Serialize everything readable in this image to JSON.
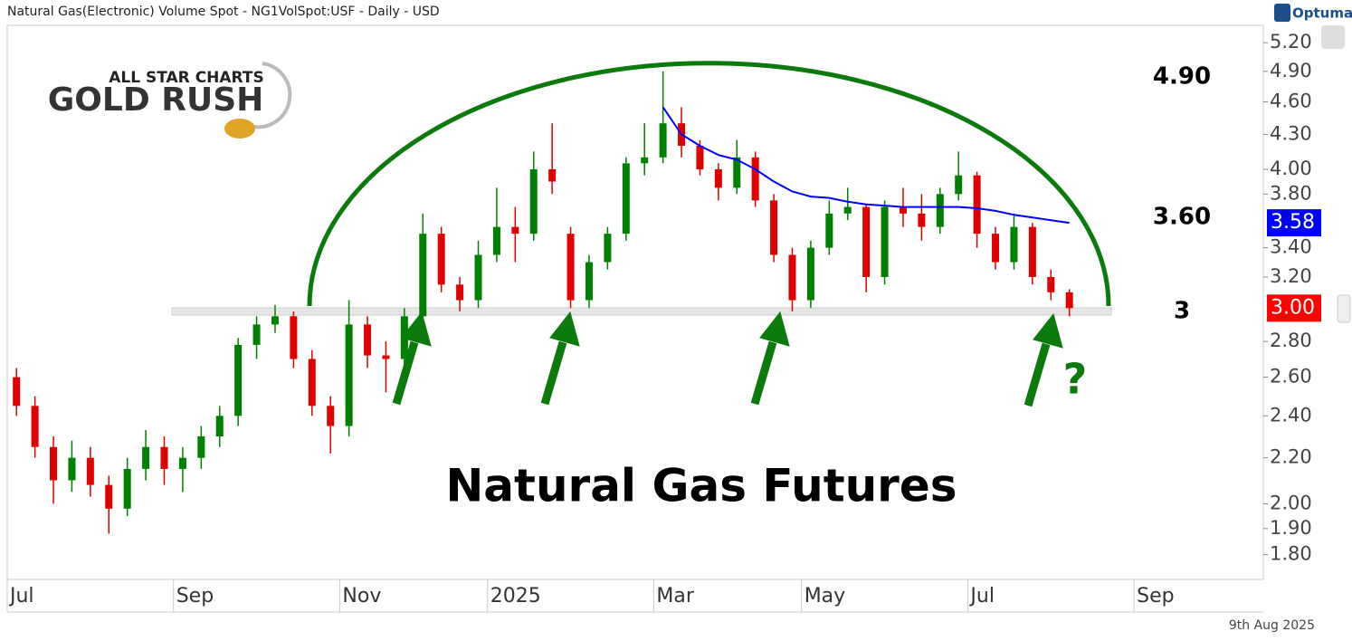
{
  "brand": "Optuma",
  "logo": [
    "ALL STAR CHARTS",
    "GOLD RUSH"
  ],
  "chart_data": {
    "type": "candlestick",
    "title": "Natural Gas(Electronic) Volume Spot - NG1VolSpot:USF - Daily - USD",
    "date_label": "9th Aug 2025",
    "categories": [
      "Jul",
      null,
      null,
      null,
      null,
      null,
      null,
      null,
      null,
      "Sep",
      null,
      null,
      null,
      null,
      null,
      null,
      null,
      null,
      "Nov",
      null,
      null,
      null,
      null,
      null,
      null,
      null,
      "2025",
      null,
      null,
      null,
      null,
      null,
      null,
      null,
      null,
      "Mar",
      null,
      null,
      null,
      null,
      null,
      null,
      null,
      "May",
      null,
      null,
      null,
      null,
      null,
      null,
      null,
      null,
      "Jul",
      null,
      null,
      null,
      null,
      null,
      null,
      null,
      null,
      "Sep",
      null,
      null,
      null,
      null,
      null,
      null
    ],
    "candles": {
      "up_color": "#008000",
      "down_color": "#e00000",
      "open": [
        2.6,
        2.45,
        2.25,
        2.1,
        2.2,
        2.08,
        1.98,
        2.15,
        2.25,
        2.15,
        2.2,
        2.3,
        2.4,
        2.78,
        2.9,
        2.95,
        2.7,
        2.45,
        2.35,
        2.9,
        2.72,
        2.7,
        2.95,
        3.5,
        3.15,
        3.05,
        3.35,
        3.55,
        3.5,
        4.0,
        3.5,
        3.05,
        3.3,
        3.5,
        4.05,
        4.1,
        4.4,
        4.2,
        4.0,
        3.85,
        4.1,
        3.75,
        3.35,
        3.05,
        3.4,
        3.65,
        3.7,
        3.2,
        3.7,
        3.65,
        3.55,
        3.8,
        3.95,
        3.5,
        3.3,
        3.55,
        3.2,
        3.1,
        null,
        null,
        null,
        null,
        null,
        null,
        null,
        null,
        null,
        null
      ],
      "high": [
        2.65,
        2.5,
        2.3,
        2.28,
        2.25,
        2.12,
        2.2,
        2.33,
        2.3,
        2.25,
        2.35,
        2.45,
        2.82,
        2.95,
        3.02,
        2.98,
        2.75,
        2.5,
        3.05,
        2.95,
        2.8,
        3.0,
        3.65,
        3.55,
        3.2,
        3.45,
        3.85,
        3.7,
        4.15,
        4.4,
        3.55,
        3.35,
        3.55,
        4.1,
        4.4,
        4.9,
        4.55,
        4.25,
        4.05,
        4.25,
        4.15,
        3.8,
        3.4,
        3.45,
        3.75,
        3.85,
        3.72,
        3.75,
        3.85,
        3.8,
        3.85,
        4.15,
        3.98,
        3.55,
        3.65,
        3.58,
        3.25,
        3.12,
        null,
        null,
        null,
        null,
        null,
        null,
        null,
        null,
        null,
        null
      ],
      "low": [
        2.4,
        2.2,
        2.0,
        2.05,
        2.03,
        1.88,
        1.95,
        2.1,
        2.08,
        2.05,
        2.15,
        2.25,
        2.35,
        2.7,
        2.85,
        2.65,
        2.4,
        2.22,
        2.3,
        2.65,
        2.52,
        2.6,
        2.9,
        3.1,
        2.98,
        3.0,
        3.3,
        3.3,
        3.45,
        3.8,
        3.0,
        3.0,
        3.25,
        3.45,
        3.95,
        4.05,
        4.1,
        3.95,
        3.75,
        3.8,
        3.7,
        3.3,
        2.98,
        3.0,
        3.35,
        3.6,
        3.1,
        3.15,
        3.55,
        3.45,
        3.5,
        3.75,
        3.4,
        3.25,
        3.25,
        3.15,
        3.05,
        2.95,
        null,
        null,
        null,
        null,
        null,
        null,
        null,
        null,
        null,
        null
      ],
      "close": [
        2.45,
        2.25,
        2.1,
        2.2,
        2.08,
        1.98,
        2.15,
        2.25,
        2.15,
        2.2,
        2.3,
        2.4,
        2.78,
        2.9,
        2.95,
        2.7,
        2.45,
        2.35,
        2.9,
        2.72,
        2.7,
        2.95,
        3.5,
        3.15,
        3.05,
        3.35,
        3.55,
        3.5,
        4.0,
        3.9,
        3.05,
        3.3,
        3.5,
        4.05,
        4.1,
        4.4,
        4.2,
        4.0,
        3.85,
        4.1,
        3.75,
        3.35,
        3.05,
        3.4,
        3.65,
        3.7,
        3.2,
        3.7,
        3.65,
        3.55,
        3.8,
        3.95,
        3.5,
        3.3,
        3.55,
        3.2,
        3.1,
        3.0,
        null,
        null,
        null,
        null,
        null,
        null,
        null,
        null,
        null,
        null
      ]
    },
    "overlay": {
      "color": "#0000ff",
      "values": [
        null,
        null,
        null,
        null,
        null,
        null,
        null,
        null,
        null,
        null,
        null,
        null,
        null,
        null,
        null,
        null,
        null,
        null,
        null,
        null,
        null,
        null,
        null,
        null,
        null,
        null,
        null,
        null,
        null,
        null,
        null,
        null,
        null,
        null,
        null,
        4.55,
        4.3,
        4.2,
        4.12,
        4.08,
        4.0,
        3.9,
        3.82,
        3.78,
        3.77,
        3.74,
        3.72,
        3.71,
        3.7,
        3.7,
        3.7,
        3.7,
        3.69,
        3.67,
        3.64,
        3.62,
        3.6,
        3.58,
        null,
        null,
        null,
        null,
        null,
        null,
        null,
        null,
        null,
        null
      ]
    },
    "log_scale": true,
    "ylim": [
      1.71,
      5.39
    ],
    "yticks": [
      {
        "value": 5.2,
        "label": "5.20"
      },
      {
        "value": 4.9,
        "label": "4.90"
      },
      {
        "value": 4.6,
        "label": "4.60"
      },
      {
        "value": 4.3,
        "label": "4.30"
      },
      {
        "value": 4.0,
        "label": "4.00"
      },
      {
        "value": 3.8,
        "label": "3.80"
      },
      {
        "value": 3.4,
        "label": "3.40"
      },
      {
        "value": 3.2,
        "label": "3.20"
      },
      {
        "value": 2.8,
        "label": "2.80"
      },
      {
        "value": 2.6,
        "label": "2.60"
      },
      {
        "value": 2.4,
        "label": "2.40"
      },
      {
        "value": 2.2,
        "label": "2.20"
      },
      {
        "value": 2.0,
        "label": "2.00"
      },
      {
        "value": 1.9,
        "label": "1.90"
      },
      {
        "value": 1.8,
        "label": "1.80"
      }
    ],
    "last_labels": [
      {
        "text": "3.58",
        "color": "#0000ff"
      },
      {
        "text": "3.00",
        "color": "#ff0000"
      }
    ],
    "annotations": [
      {
        "text": "4.90",
        "color": "#000000"
      },
      {
        "text": "3.60",
        "color": "#000000"
      },
      {
        "text": "3",
        "color": "#000000"
      },
      {
        "text": "Natural Gas Futures",
        "color": "#000000"
      },
      {
        "text": "?",
        "color": "#0a7a0a"
      }
    ]
  }
}
